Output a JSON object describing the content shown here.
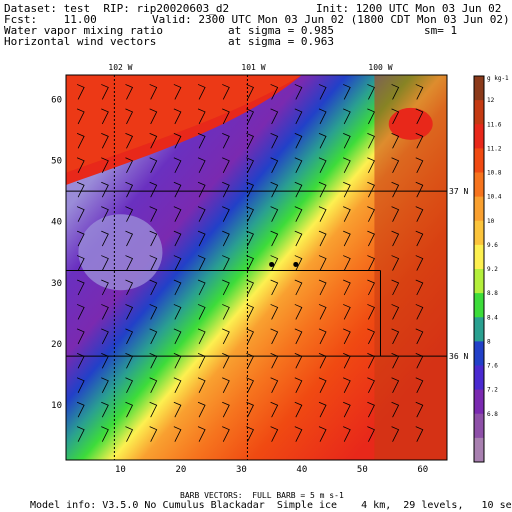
{
  "header": {
    "dataset": "Dataset: test  RIP: rip20020603_d2",
    "init": "Init: 1200 UTC Mon 03 Jun 02",
    "fcst": "Fcst:    11.00",
    "valid": "Valid: 2300 UTC Mon 03 Jun 02 (1800 CDT Mon 03 Jun 02)",
    "field1_name": "Water vapor mixing ratio",
    "field1_level": "at sigma = 0.985",
    "field1_extra": "sm= 1",
    "field2_name": "Horizontal wind vectors",
    "field2_level": "at sigma = 0.963"
  },
  "map": {
    "x_ticks": [
      10,
      20,
      30,
      40,
      50,
      60
    ],
    "y_ticks": [
      10,
      20,
      30,
      40,
      50,
      60
    ],
    "x_range": [
      1,
      64
    ],
    "y_range": [
      1,
      64
    ],
    "lon_labels": [
      "102 W",
      "101 W",
      "100 W"
    ],
    "lat_labels": [
      "37 N",
      "36 N"
    ],
    "markers": [
      [
        35,
        33
      ],
      [
        39,
        33
      ]
    ],
    "colors": {
      "bg": "#ffffff",
      "grid": "#000000",
      "barb": "#000000"
    }
  },
  "colorbar": {
    "unit": "g kg-1",
    "labels": [
      "12",
      "11.6",
      "11.2",
      "10.8",
      "10.4",
      "10",
      "9.6",
      "9.2",
      "8.8",
      "8.4",
      "8",
      "7.6",
      "7.2",
      "6.8"
    ],
    "colors": [
      "#8b3a1a",
      "#c43a12",
      "#e8281a",
      "#f04a12",
      "#f6741e",
      "#f9a030",
      "#fbc43c",
      "#fdf050",
      "#b4ef3c",
      "#3ddc3a",
      "#2aa090",
      "#2240c8",
      "#4a2ad0",
      "#7a2ab0",
      "#8e50a8",
      "#a880b0"
    ]
  },
  "footer": {
    "barb_note": "BARB VECTORS:  FULL BARB = 5 m s-1",
    "model_info": "Model info: V3.5.0 No Cumulus Blackadar  Simple ice    4 km,  29 levels,   10 sec"
  }
}
